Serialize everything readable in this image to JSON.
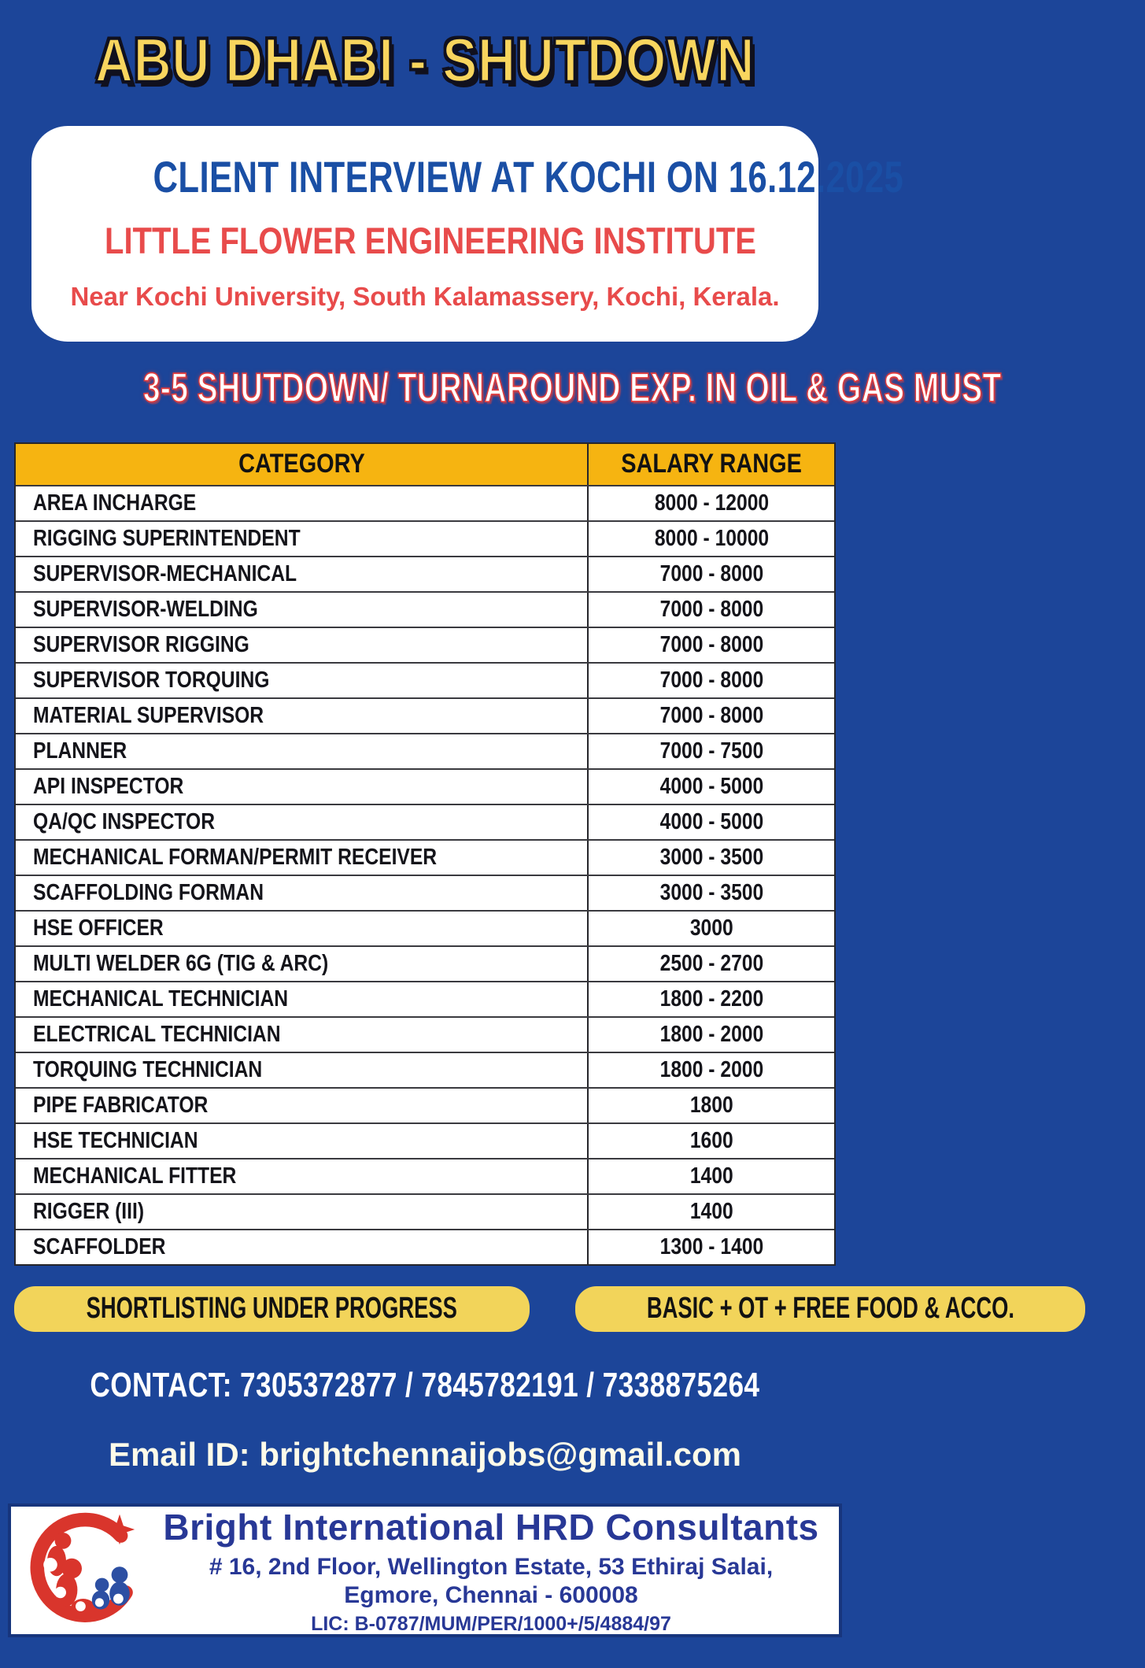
{
  "colors": {
    "background": "#1c4599",
    "title_yellow": "#f8d55e",
    "heading_blue": "#1a4fa5",
    "red": "#e84b4b",
    "banner_red": "#e23b3b",
    "table_header_yellow": "#f6b411",
    "pill_yellow": "#f2d45a",
    "footer_navy": "#283896",
    "logo_red": "#d9352c",
    "logo_blue": "#2c4fa3"
  },
  "title": "ABU DHABI - SHUTDOWN",
  "event_card": {
    "heading": "CLIENT INTERVIEW AT KOCHI ON 16.12.2025",
    "institute": "LITTLE FLOWER ENGINEERING INSTITUTE",
    "address": "Near Kochi University, South Kalamassery, Kochi, Kerala."
  },
  "experience_banner": "3-5 SHUTDOWN/ TURNAROUND EXP. IN OIL & GAS MUST",
  "salary_table": {
    "headers": [
      "CATEGORY",
      "SALARY RANGE"
    ],
    "rows": [
      {
        "category": "AREA INCHARGE",
        "salary": "8000 - 12000"
      },
      {
        "category": "RIGGING SUPERINTENDENT",
        "salary": "8000 - 10000"
      },
      {
        "category": "SUPERVISOR-MECHANICAL",
        "salary": "7000 - 8000"
      },
      {
        "category": "SUPERVISOR-WELDING",
        "salary": "7000 - 8000"
      },
      {
        "category": "SUPERVISOR RIGGING",
        "salary": "7000 - 8000"
      },
      {
        "category": "SUPERVISOR TORQUING",
        "salary": "7000 - 8000"
      },
      {
        "category": "MATERIAL SUPERVISOR",
        "salary": "7000 - 8000"
      },
      {
        "category": "PLANNER",
        "salary": "7000 - 7500"
      },
      {
        "category": "API INSPECTOR",
        "salary": "4000 - 5000"
      },
      {
        "category": "QA/QC INSPECTOR",
        "salary": "4000 - 5000"
      },
      {
        "category": "MECHANICAL FORMAN/PERMIT RECEIVER",
        "salary": "3000 - 3500"
      },
      {
        "category": "SCAFFOLDING FORMAN",
        "salary": "3000 - 3500"
      },
      {
        "category": "HSE OFFICER",
        "salary": "3000"
      },
      {
        "category": "MULTI WELDER 6G (TIG & ARC)",
        "salary": "2500 - 2700"
      },
      {
        "category": "MECHANICAL TECHNICIAN",
        "salary": "1800 - 2200"
      },
      {
        "category": "ELECTRICAL TECHNICIAN",
        "salary": "1800 - 2000"
      },
      {
        "category": "TORQUING TECHNICIAN",
        "salary": "1800 - 2000"
      },
      {
        "category": "PIPE FABRICATOR",
        "salary": "1800"
      },
      {
        "category": "HSE TECHNICIAN",
        "salary": "1600"
      },
      {
        "category": "MECHANICAL FITTER",
        "salary": "1400"
      },
      {
        "category": "RIGGER (III)",
        "salary": "1400"
      },
      {
        "category": "SCAFFOLDER",
        "salary": "1300 - 1400"
      }
    ]
  },
  "badges": {
    "left": "SHORTLISTING UNDER PROGRESS",
    "right": "BASIC + OT + FREE FOOD & ACCO."
  },
  "contact_line": "CONTACT: 7305372877 / 7845782191 / 7338875264",
  "email_line": "Email ID: brightchennaijobs@gmail.com",
  "footer": {
    "company": "Bright International HRD Consultants",
    "address_line1": "# 16, 2nd Floor, Wellington Estate, 53 Ethiraj Salai,",
    "address_line2": "Egmore, Chennai - 600008",
    "license": "LIC: B-0787/MUM/PER/1000+/5/4884/97"
  }
}
